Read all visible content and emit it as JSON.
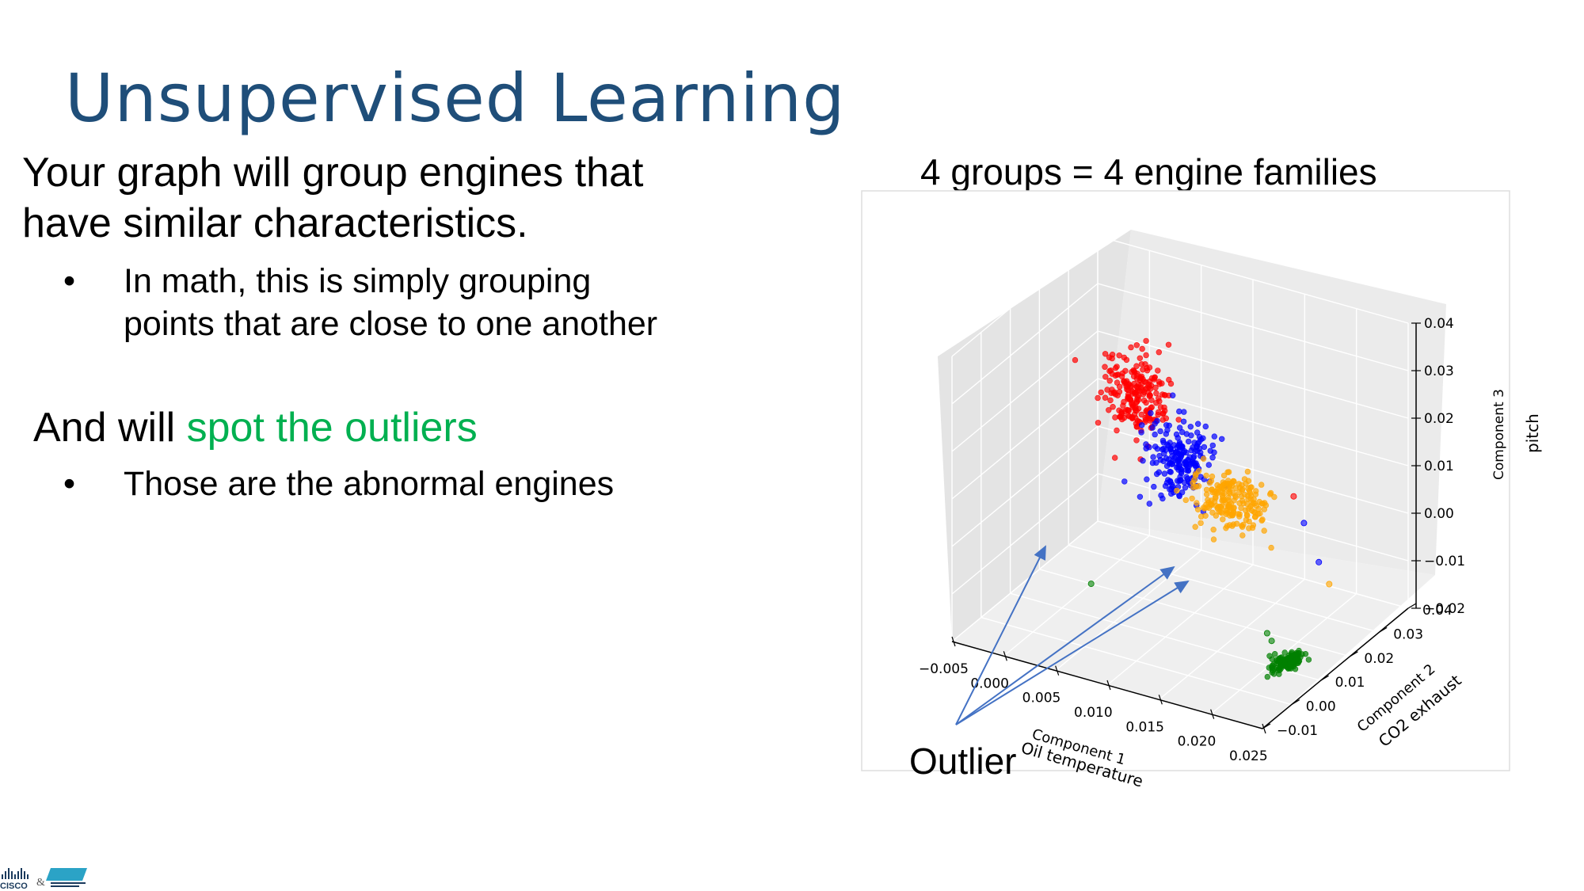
{
  "slide": {
    "title": "Unsupervised Learning",
    "lead_line1": "Your graph will group engines that",
    "lead_line2": "have similar characteristics.",
    "bullet1_line1": "In math, this is simply grouping",
    "bullet1_line2": "points that are close to one another",
    "lead2_prefix": "And will ",
    "lead2_highlight": "spot the outliers",
    "bullet2": "Those are the abnormal engines",
    "bullet_char": "•",
    "chart_title": "4 groups = 4 engine families",
    "outlier_label": "Outlier",
    "logo_text": "CISCO",
    "colors": {
      "title": "#1f4e79",
      "highlight": "#00b050",
      "arrow": "#4472c4"
    }
  },
  "chart_data": {
    "type": "scatter",
    "projection": "3d",
    "title": "",
    "xlabel": "Component 1",
    "xlabel_extra": "Oil temperature",
    "ylabel": "Component 2",
    "ylabel_extra": "CO2 exhaust",
    "zlabel": "Component 3",
    "zlabel_extra": "pitch",
    "xlim": [
      -0.005,
      0.025
    ],
    "ylim": [
      -0.01,
      0.04
    ],
    "zlim": [
      -0.02,
      0.04
    ],
    "x_ticks": [
      "−0.005",
      "0.000",
      "0.005",
      "0.010",
      "0.015",
      "0.020",
      "0.025"
    ],
    "y_ticks": [
      "−0.01",
      "0.00",
      "0.01",
      "0.02",
      "0.03",
      "0.04"
    ],
    "z_ticks": [
      "−0.02",
      "−0.01",
      "0.00",
      "0.01",
      "0.02",
      "0.03",
      "0.04"
    ],
    "grid": true,
    "series": [
      {
        "color": "#ff0000",
        "center": [
          0.003,
          0.025,
          0.019
        ],
        "spread": [
          0.0015,
          0.002,
          0.004
        ],
        "count": 220
      },
      {
        "color": "#0000ff",
        "center": [
          0.007,
          0.025,
          0.008
        ],
        "spread": [
          0.0015,
          0.0025,
          0.004
        ],
        "count": 200
      },
      {
        "color": "#ffa500",
        "center": [
          0.012,
          0.025,
          0.002
        ],
        "spread": [
          0.0018,
          0.002,
          0.003
        ],
        "count": 200
      },
      {
        "color": "#008000",
        "center": [
          0.021,
          0.013,
          -0.02
        ],
        "spread": [
          0.0005,
          0.002,
          0.0002
        ],
        "count": 130
      }
    ],
    "outliers": [
      {
        "color": "#008000",
        "x": 0.0,
        "y": 0.02,
        "z": -0.02
      },
      {
        "color": "#008000",
        "x": 0.017,
        "y": 0.02,
        "z": -0.02
      },
      {
        "color": "#008000",
        "x": 0.018,
        "y": 0.018,
        "z": -0.02
      },
      {
        "color": "#0000ff",
        "x": 0.02,
        "y": 0.022,
        "z": 0.004
      },
      {
        "color": "#0000ff",
        "x": 0.022,
        "y": 0.02,
        "z": -0.002
      },
      {
        "color": "#ffa500",
        "x": 0.023,
        "y": 0.02,
        "z": -0.006
      },
      {
        "color": "#ff0000",
        "x": 0.019,
        "y": 0.022,
        "z": 0.009
      }
    ]
  }
}
